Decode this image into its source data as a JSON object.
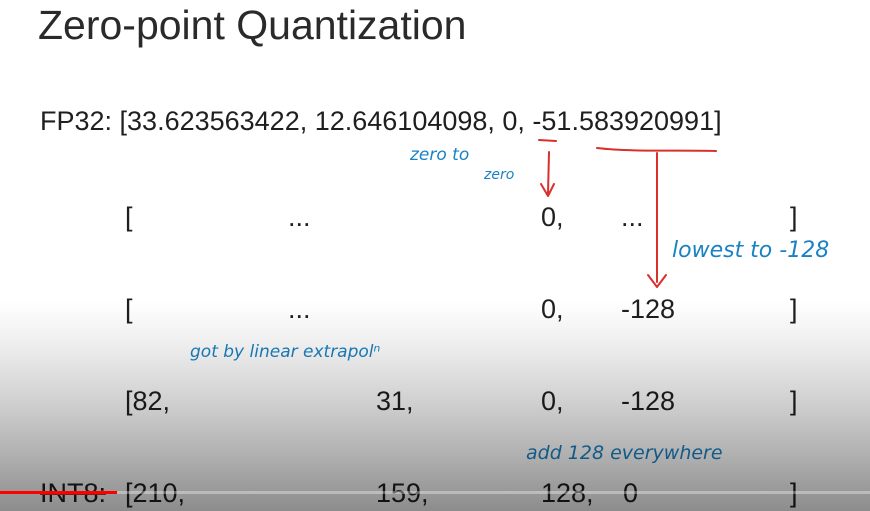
{
  "slide": {
    "title": "Zero-point Quantization",
    "fp32_line": "FP32: [33.623563422, 12.646104098, 0, -51.583920991]",
    "rows": [
      {
        "open": "[",
        "c1": "...",
        "c2": "0,",
        "c3": "...",
        "close": "]"
      },
      {
        "open": "[",
        "c1": "...",
        "c2": "0,",
        "c3": "-128",
        "close": "]"
      },
      {
        "open": "[82,",
        "c1": "31,",
        "c2": "0,",
        "c3": "-128",
        "close": "]"
      }
    ],
    "int8": {
      "label": "INT8:",
      "open": "[210,",
      "c1": "159,",
      "c2": "128,",
      "c3": "0",
      "close": "]"
    }
  },
  "annotations": {
    "zero_to_zero_line1": "zero to",
    "zero_to_zero_line2": "zero",
    "lowest": "lowest to -128",
    "linear": "got by linear extrapolⁿ",
    "add128": "add 128 everywhere"
  },
  "colors": {
    "annotation_text": "#1a82c4",
    "annotation_arrow": "#d9302b",
    "progress": "#ff0000"
  },
  "player": {
    "progress": 0.135
  }
}
